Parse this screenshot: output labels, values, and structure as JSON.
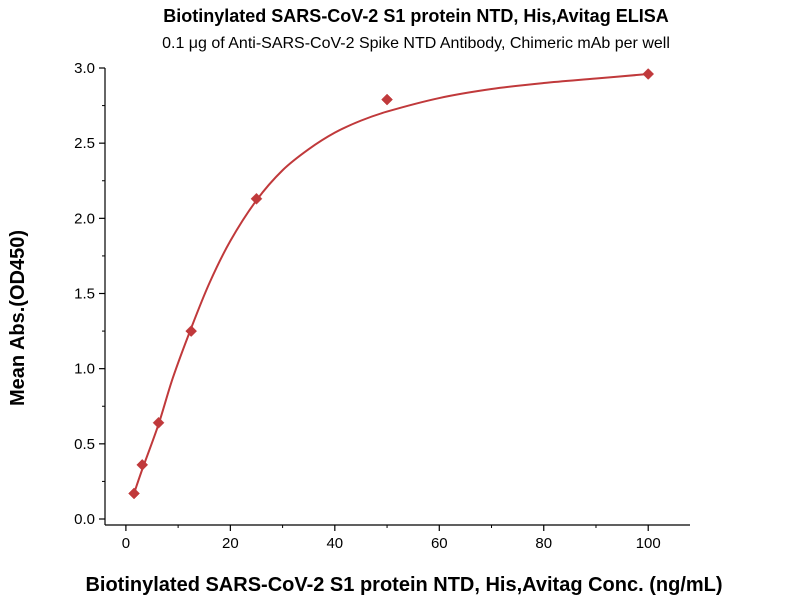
{
  "chart_data": {
    "type": "scatter",
    "title": "Biotinylated SARS-CoV-2 S1 protein NTD, His,Avitag ELISA",
    "subtitle": "0.1 μg of Anti-SARS-CoV-2 Spike NTD Antibody, Chimeric mAb per well",
    "xlabel": "Biotinylated SARS-CoV-2 S1 protein NTD, His,Avitag Conc. (ng/mL)",
    "ylabel": "Mean Abs.(OD450)",
    "xlim": [
      -4,
      108
    ],
    "ylim": [
      0,
      3.0
    ],
    "x_ticks": [
      0,
      20,
      40,
      60,
      80,
      100
    ],
    "y_ticks": [
      0.0,
      0.5,
      1.0,
      1.5,
      2.0,
      2.5,
      3.0
    ],
    "x_tick_labels": [
      "0",
      "20",
      "40",
      "60",
      "80",
      "100"
    ],
    "y_tick_labels": [
      "0.0",
      "0.5",
      "1.0",
      "1.5",
      "2.0",
      "2.5",
      "3.0"
    ],
    "grid": false,
    "legend": "none",
    "marker": "diamond",
    "color": "#c0393b",
    "points": [
      {
        "x": 1.56,
        "y": 0.17
      },
      {
        "x": 3.13,
        "y": 0.36
      },
      {
        "x": 6.25,
        "y": 0.64
      },
      {
        "x": 12.5,
        "y": 1.25
      },
      {
        "x": 25,
        "y": 2.13
      },
      {
        "x": 50,
        "y": 2.79
      },
      {
        "x": 100,
        "y": 2.96
      }
    ],
    "fit_curve": {
      "type": "smooth",
      "points": [
        {
          "x": 1.56,
          "y": 0.17
        },
        {
          "x": 3.13,
          "y": 0.33
        },
        {
          "x": 6.25,
          "y": 0.63
        },
        {
          "x": 9,
          "y": 0.94
        },
        {
          "x": 12.5,
          "y": 1.27
        },
        {
          "x": 16,
          "y": 1.57
        },
        {
          "x": 20,
          "y": 1.85
        },
        {
          "x": 25,
          "y": 2.12
        },
        {
          "x": 30,
          "y": 2.32
        },
        {
          "x": 35,
          "y": 2.46
        },
        {
          "x": 40,
          "y": 2.57
        },
        {
          "x": 45,
          "y": 2.65
        },
        {
          "x": 50,
          "y": 2.71
        },
        {
          "x": 60,
          "y": 2.8
        },
        {
          "x": 70,
          "y": 2.86
        },
        {
          "x": 80,
          "y": 2.9
        },
        {
          "x": 90,
          "y": 2.93
        },
        {
          "x": 100,
          "y": 2.96
        }
      ]
    }
  }
}
